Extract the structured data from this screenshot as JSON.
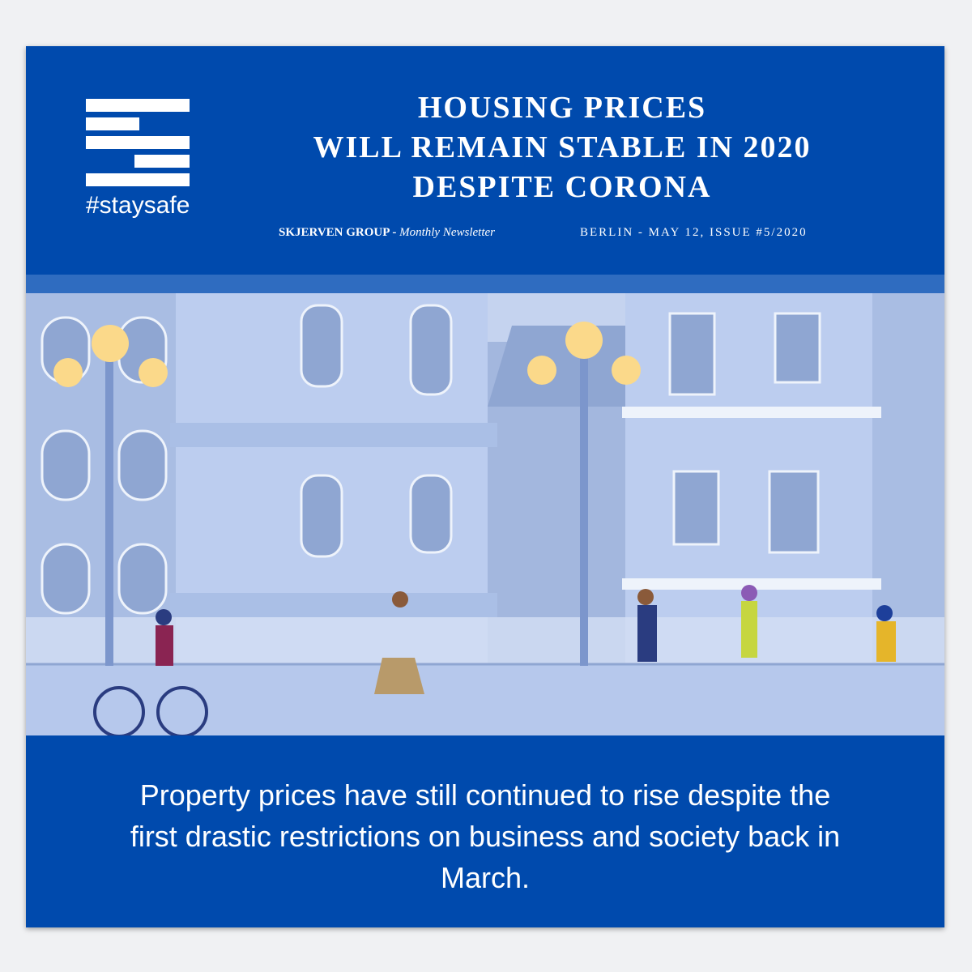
{
  "logo": {
    "tagline": "#staysafe"
  },
  "header": {
    "title_lines": [
      "HOUSING PRICES",
      "WILL REMAIN STABLE IN 2020",
      "DESPITE CORONA"
    ],
    "publisher": "SKJERVEN GROUP -",
    "publication": "Monthly Newsletter",
    "issue_info": "BERLIN - MAY 12, ISSUE #5/2020"
  },
  "colors": {
    "brand_blue": "#004aad",
    "stripe_blue": "#2f6cc0",
    "scene_sky": "#c5d3ef"
  },
  "body": {
    "text": "Property prices have still continued to rise despite the first drastic restrictions on business and society back in March."
  }
}
